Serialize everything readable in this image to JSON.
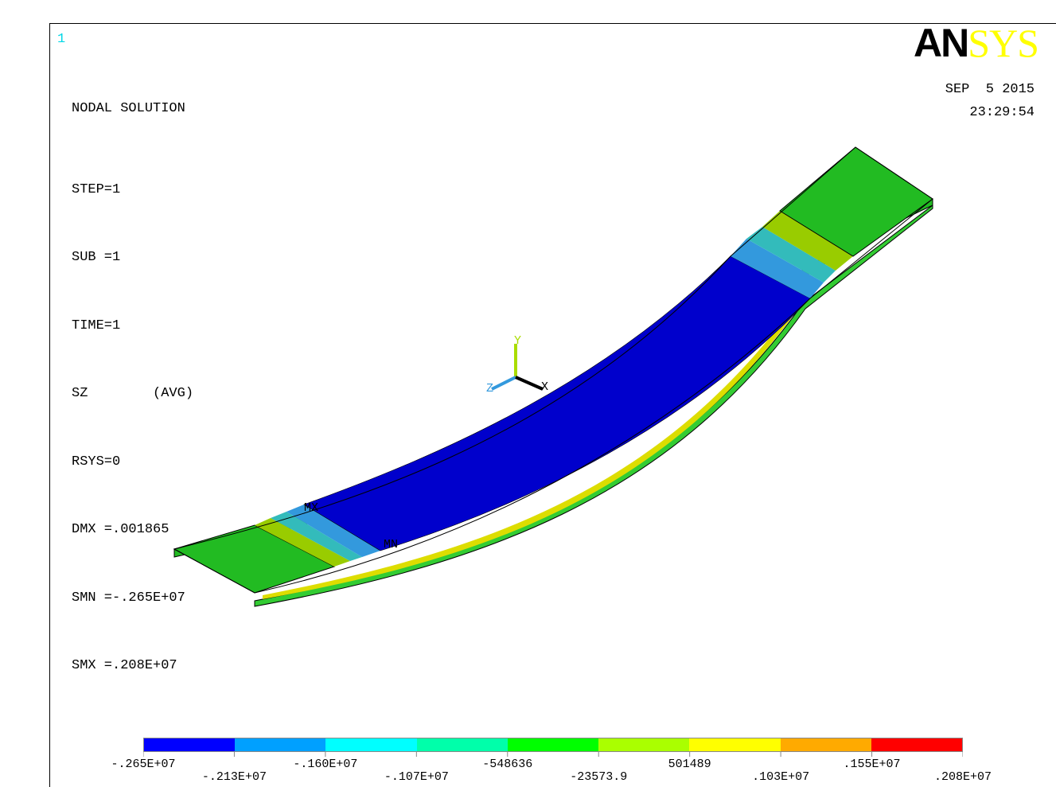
{
  "window": {
    "number": "1"
  },
  "info": {
    "title": "NODAL SOLUTION",
    "lines": [
      "STEP=1",
      "SUB =1",
      "TIME=1",
      "SZ        (AVG)",
      "RSYS=0",
      "DMX =.001865",
      "SMN =-.265E+07",
      "SMX =.208E+07"
    ]
  },
  "logo": {
    "part1": "AN",
    "part2": "SYS"
  },
  "datetime": {
    "date": "SEP  5 2015",
    "time": "23:29:54"
  },
  "triad": {
    "x": "X",
    "y": "Y",
    "z": "Z"
  },
  "markers": {
    "mx": "MX",
    "mn": "MN"
  },
  "legend": {
    "colors": [
      "#0000ff",
      "#00a0ff",
      "#00ffff",
      "#00ffaa",
      "#00ff00",
      "#aaff00",
      "#ffff00",
      "#ffaa00",
      "#ff0000"
    ],
    "upper_labels": [
      "-.265E+07",
      "-.160E+07",
      "-548636",
      "501489",
      ".155E+07"
    ],
    "lower_labels": [
      "-.213E+07",
      "-.107E+07",
      "-23573.9",
      ".103E+07",
      ".208E+07"
    ]
  },
  "colors": {
    "band_blue": "#0000cc",
    "green": "#22bb22",
    "edge": "#000000"
  }
}
